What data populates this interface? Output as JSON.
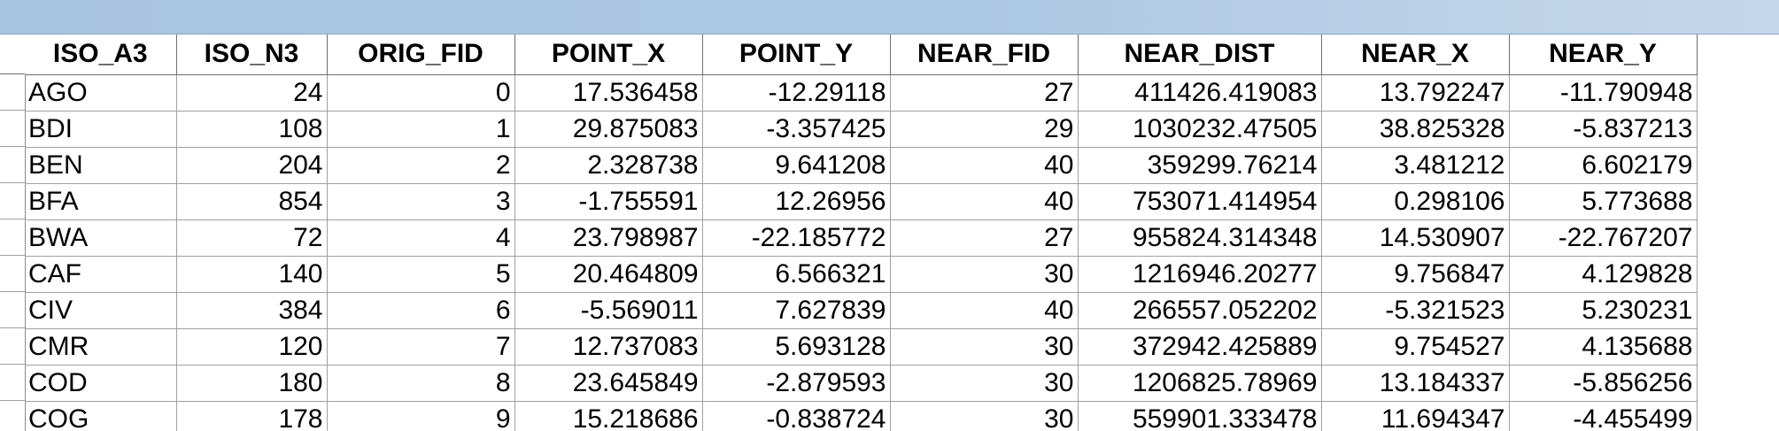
{
  "table": {
    "columns": [
      {
        "label": "ISO_A3",
        "align": "left"
      },
      {
        "label": "ISO_N3",
        "align": "right"
      },
      {
        "label": "ORIG_FID",
        "align": "right"
      },
      {
        "label": "POINT_X",
        "align": "right"
      },
      {
        "label": "POINT_Y",
        "align": "right"
      },
      {
        "label": "NEAR_FID",
        "align": "right"
      },
      {
        "label": "NEAR_DIST",
        "align": "right"
      },
      {
        "label": "NEAR_X",
        "align": "right"
      },
      {
        "label": "NEAR_Y",
        "align": "right"
      }
    ],
    "rows": [
      [
        "AGO",
        "24",
        "0",
        "17.536458",
        "-12.29118",
        "27",
        "411426.419083",
        "13.792247",
        "-11.790948"
      ],
      [
        "BDI",
        "108",
        "1",
        "29.875083",
        "-3.357425",
        "29",
        "1030232.47505",
        "38.825328",
        "-5.837213"
      ],
      [
        "BEN",
        "204",
        "2",
        "2.328738",
        "9.641208",
        "40",
        "359299.76214",
        "3.481212",
        "6.602179"
      ],
      [
        "BFA",
        "854",
        "3",
        "-1.755591",
        "12.26956",
        "40",
        "753071.414954",
        "0.298106",
        "5.773688"
      ],
      [
        "BWA",
        "72",
        "4",
        "23.798987",
        "-22.185772",
        "27",
        "955824.314348",
        "14.530907",
        "-22.767207"
      ],
      [
        "CAF",
        "140",
        "5",
        "20.464809",
        "6.566321",
        "30",
        "1216946.20277",
        "9.756847",
        "4.129828"
      ],
      [
        "CIV",
        "384",
        "6",
        "-5.569011",
        "7.627839",
        "40",
        "266557.052202",
        "-5.321523",
        "5.230231"
      ],
      [
        "CMR",
        "120",
        "7",
        "12.737083",
        "5.693128",
        "30",
        "372942.425889",
        "9.754527",
        "4.135688"
      ],
      [
        "COD",
        "180",
        "8",
        "23.645849",
        "-2.879593",
        "30",
        "1206825.78969",
        "13.184337",
        "-5.856256"
      ],
      [
        "COG",
        "178",
        "9",
        "15.218686",
        "-0.838724",
        "30",
        "559901.333478",
        "11.694347",
        "-4.455499"
      ]
    ]
  }
}
